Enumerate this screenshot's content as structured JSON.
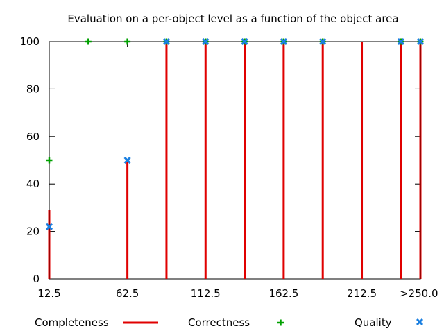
{
  "chart_data": {
    "type": "scatter",
    "title": "Evaluation on a per-object level as a function of the object area",
    "xlabel": "",
    "ylabel": "",
    "ylim": [
      0,
      100
    ],
    "yticks": [
      0,
      20,
      40,
      60,
      80,
      100
    ],
    "xlim": [
      12.5,
      250
    ],
    "xticks": [
      12.5,
      62.5,
      112.5,
      162.5,
      212.5,
      250
    ],
    "xtick_labels": [
      "12.5",
      "62.5",
      "112.5",
      "162.5",
      "212.5",
      ">250.0"
    ],
    "legend_position": "bottom",
    "colors": {
      "completeness": "#e00000",
      "correctness": "#00a000",
      "quality": "#1a7fe0"
    },
    "series": [
      {
        "name": "Completeness",
        "style": "impulses",
        "x": [
          12.5,
          62.5,
          87.5,
          112.5,
          137.5,
          162.5,
          187.5,
          212.5,
          237.5,
          250
        ],
        "y": [
          29,
          50,
          100,
          100,
          100,
          100,
          100,
          100,
          100,
          100
        ]
      },
      {
        "name": "Correctness",
        "style": "points-plus",
        "x": [
          12.5,
          37.5,
          62.5,
          87.5,
          112.5,
          137.5,
          162.5,
          187.5,
          237.5,
          250
        ],
        "y": [
          50,
          100,
          100,
          100,
          100,
          100,
          100,
          100,
          100,
          100
        ]
      },
      {
        "name": "Quality",
        "style": "points-x",
        "x": [
          12.5,
          62.5,
          87.5,
          112.5,
          137.5,
          162.5,
          187.5,
          237.5,
          250
        ],
        "y": [
          22,
          50,
          100,
          100,
          100,
          100,
          100,
          100,
          100
        ]
      }
    ]
  }
}
